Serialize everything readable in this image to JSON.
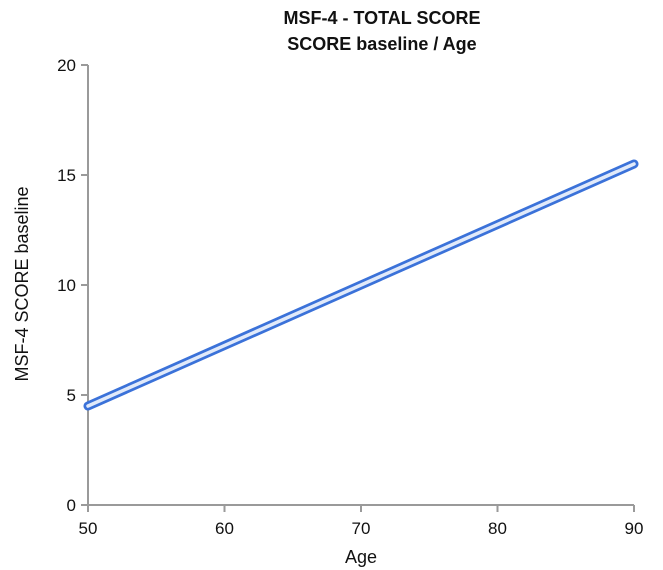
{
  "chart_data": {
    "type": "line",
    "title": "MSF-4 - TOTAL SCORE",
    "subtitle": "SCORE baseline / Age",
    "xlabel": "Age",
    "ylabel": "MSF-4 SCORE baseline",
    "xlim": [
      50,
      90
    ],
    "ylim": [
      0,
      20
    ],
    "xticks": [
      50,
      60,
      70,
      80,
      90
    ],
    "yticks": [
      0,
      5,
      10,
      15,
      20
    ],
    "grid": false,
    "series": [
      {
        "x": [
          50,
          90
        ],
        "y": [
          4.5,
          15.5
        ],
        "color": "#3b72d9"
      }
    ]
  }
}
